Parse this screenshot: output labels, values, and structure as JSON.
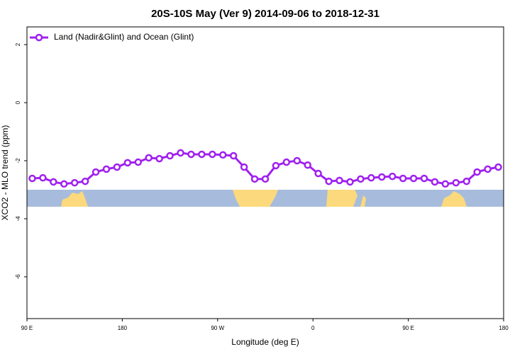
{
  "chart_data": {
    "type": "line",
    "title": "20S-10S May (Ver 9)   2014-09-06 to 2018-12-31",
    "xlabel": "Longitude (deg E)",
    "ylabel": "XCO2 - MLO trend (ppm)",
    "x": [
      95,
      105,
      115,
      125,
      135,
      145,
      155,
      165,
      175,
      185,
      195,
      205,
      215,
      225,
      235,
      245,
      255,
      265,
      275,
      285,
      295,
      305,
      315,
      325,
      335,
      345,
      355,
      365,
      375,
      385,
      395,
      405,
      415,
      425,
      435,
      445,
      455,
      465,
      475,
      485,
      495,
      505,
      515,
      525,
      535
    ],
    "series": [
      {
        "name": "Land (Nadir&Glint) and Ocean (Glint)",
        "color": "#a020f0",
        "values": [
          -2.61,
          -2.59,
          -2.73,
          -2.8,
          -2.76,
          -2.71,
          -2.39,
          -2.29,
          -2.22,
          -2.07,
          -2.05,
          -1.9,
          -1.93,
          -1.83,
          -1.73,
          -1.78,
          -1.78,
          -1.78,
          -1.8,
          -1.83,
          -2.22,
          -2.63,
          -2.63,
          -2.17,
          -2.05,
          -2.0,
          -2.15,
          -2.44,
          -2.71,
          -2.68,
          -2.73,
          -2.63,
          -2.59,
          -2.56,
          -2.54,
          -2.61,
          -2.61,
          -2.61,
          -2.73,
          -2.8,
          -2.76,
          -2.71,
          -2.39,
          -2.29,
          -2.22
        ]
      }
    ],
    "xlim": [
      90,
      540
    ],
    "xticks": [
      {
        "value": 90,
        "label": "90 E"
      },
      180,
      {
        "value": 270,
        "label": "90 W"
      },
      {
        "value": 360,
        "label": "0"
      },
      {
        "value": 450,
        "label": "90 E"
      },
      180
    ],
    "ylim": [
      -7.44,
      2.61
    ],
    "yticks": [
      2,
      0,
      -2,
      -4,
      -6
    ],
    "legend": "top-left"
  }
}
